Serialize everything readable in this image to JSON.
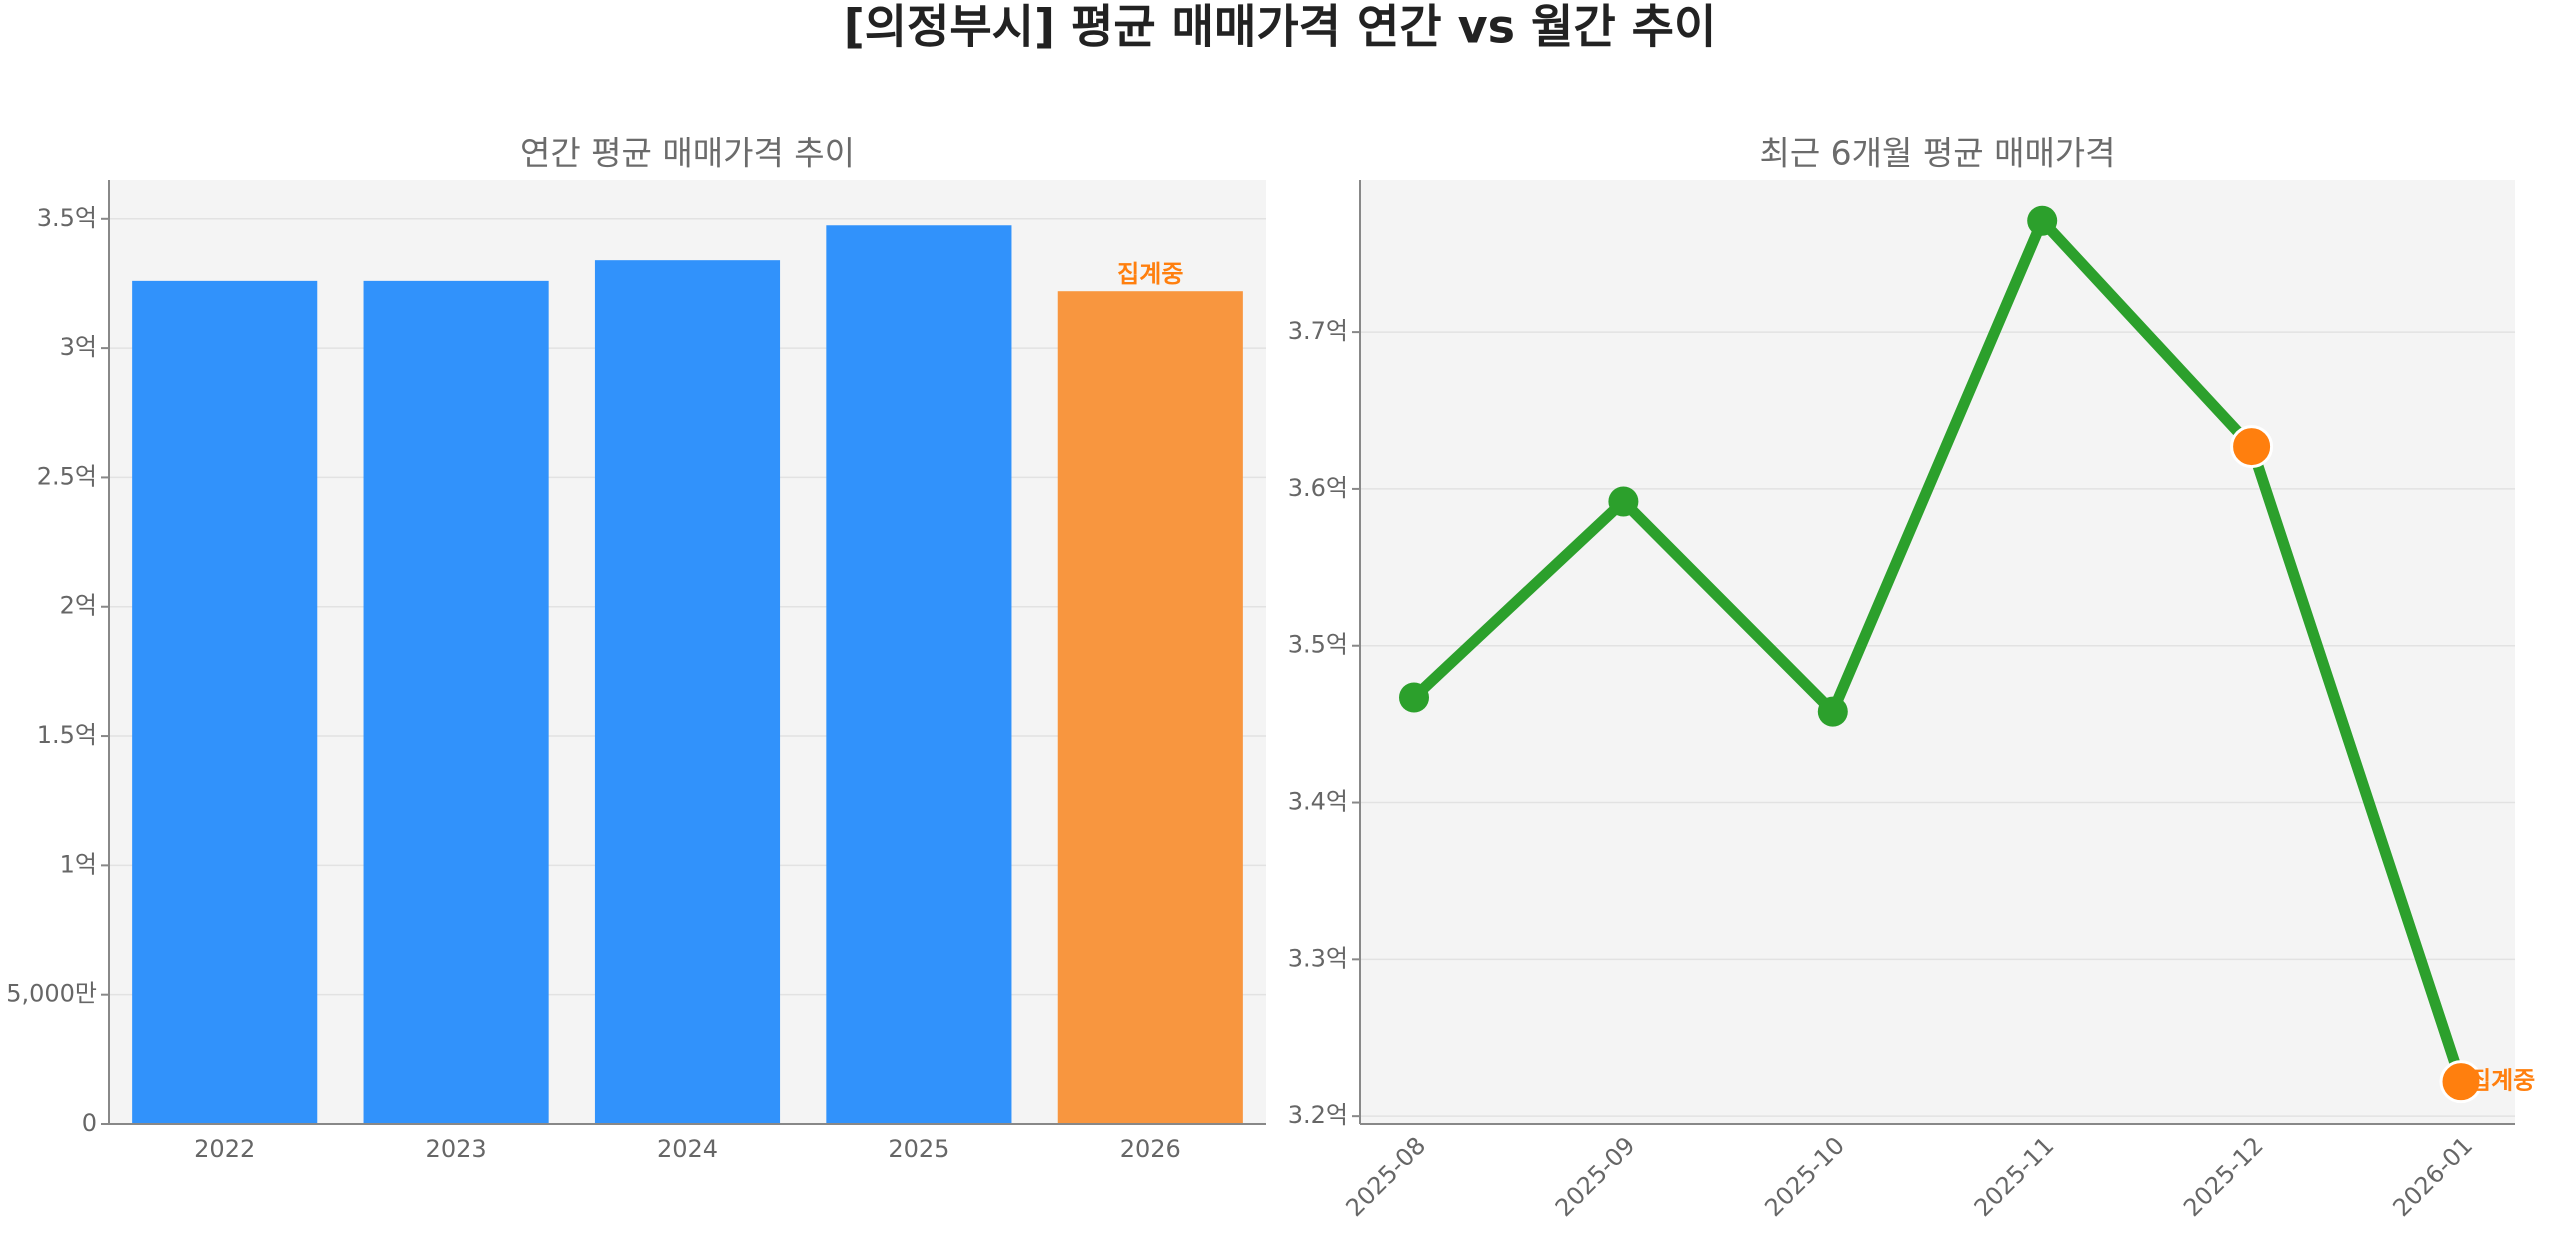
{
  "title": "[의정부시] 평균 매매가격 연간 vs 월간 추이",
  "chart_data": [
    {
      "type": "bar",
      "title": "연간 평균 매매가격 추이",
      "categories": [
        "2022",
        "2023",
        "2024",
        "2025",
        "2026"
      ],
      "values": [
        3.26,
        3.26,
        3.34,
        3.475,
        3.22
      ],
      "colors": [
        "#3192fb",
        "#3192fb",
        "#3192fb",
        "#3192fb",
        "#f8963f"
      ],
      "annotation": "집계중",
      "annotation_color": "#ff7f0e",
      "ylim": [
        0,
        3.65
      ],
      "yticks": [
        {
          "value": 0,
          "label": "0"
        },
        {
          "value": 0.5,
          "label": "5,000만"
        },
        {
          "value": 1,
          "label": "1억"
        },
        {
          "value": 1.5,
          "label": "1.5억"
        },
        {
          "value": 2,
          "label": "2억"
        },
        {
          "value": 2.5,
          "label": "2.5억"
        },
        {
          "value": 3,
          "label": "3억"
        },
        {
          "value": 3.5,
          "label": "3.5억"
        }
      ],
      "grid": true
    },
    {
      "type": "line",
      "title": "최근 6개월 평균 매매가격",
      "categories": [
        "2025-08",
        "2025-09",
        "2025-10",
        "2025-11",
        "2025-12",
        "2026-01"
      ],
      "values": [
        3.467,
        3.592,
        3.458,
        3.771,
        3.627,
        3.222
      ],
      "color": "#2ca02c",
      "marker_colors": [
        "#2ca02c",
        "#2ca02c",
        "#2ca02c",
        "#2ca02c",
        "#ff7f0e",
        "#ff7f0e"
      ],
      "annotation": "집계중",
      "annotation_color": "#ff7f0e",
      "ylim": [
        3.195,
        3.797
      ],
      "yticks": [
        {
          "value": 3.2,
          "label": "3.2억"
        },
        {
          "value": 3.3,
          "label": "3.3억"
        },
        {
          "value": 3.4,
          "label": "3.4억"
        },
        {
          "value": 3.5,
          "label": "3.5억"
        },
        {
          "value": 3.6,
          "label": "3.6억"
        },
        {
          "value": 3.7,
          "label": "3.7억"
        }
      ],
      "grid": true
    }
  ]
}
